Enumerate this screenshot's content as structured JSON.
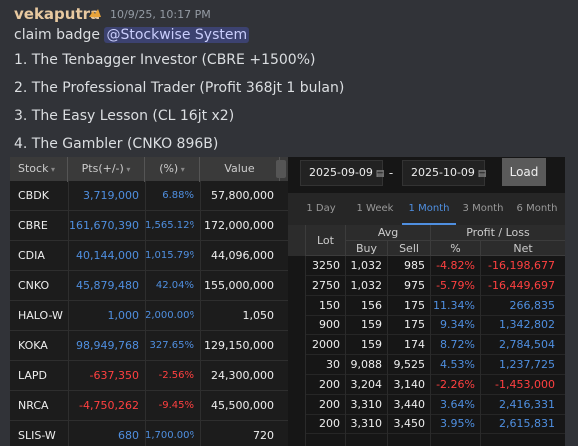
{
  "header": {
    "username": "vekaputra",
    "timestamp": "10/9/25, 10:17 PM"
  },
  "message": {
    "text": "claim badge",
    "mention": "@Stockwise System",
    "items": [
      "1. The Tenbagger Investor (CBRE +1500%)",
      "2. The Professional Trader (Profit 368jt 1 bulan)",
      "3. The Easy Lesson (CL 16jt x2)",
      "4. The Gambler (CNKO 896B)"
    ]
  },
  "holdings_table": {
    "columns": [
      "Stock",
      "Pts(+/-)",
      "(%)",
      "Value"
    ],
    "rows": [
      [
        "CBDK",
        "3,719,000",
        "6.88%",
        "57,800,000"
      ],
      [
        "CBRE",
        "161,670,390",
        "1,565.12%",
        "172,000,000"
      ],
      [
        "CDIA",
        "40,144,000",
        "1,015.79%",
        "44,096,000"
      ],
      [
        "CNKO",
        "45,879,480",
        "42.04%",
        "155,000,000"
      ],
      [
        "HALO-W",
        "1,000",
        "2,000.00%",
        "1,050"
      ],
      [
        "KOKA",
        "98,949,768",
        "327.65%",
        "129,150,000"
      ],
      [
        "LAPD",
        "-637,350",
        "-2.56%",
        "24,300,000"
      ],
      [
        "NRCA",
        "-4,750,262",
        "-9.45%",
        "45,500,000"
      ],
      [
        "SLIS-W",
        "680",
        "1,700.00%",
        "720"
      ]
    ]
  },
  "pnl_panel": {
    "start_date": "2025-09-09",
    "separator": "-",
    "end_date": "2025-10-09",
    "load_button": "Load",
    "tabs": [
      "1 Day",
      "1 Week",
      "1 Month",
      "3 Month",
      "6 Month"
    ],
    "active_tab": 2,
    "columns": {
      "lot": "Lot",
      "avg": "Avg",
      "buy": "Buy",
      "sell": "Sell",
      "pl": "Profit / Loss",
      "pct": "%",
      "net": "Net"
    },
    "rows": [
      [
        "3250",
        "1,032",
        "985",
        "-4.82%",
        "-16,198,677"
      ],
      [
        "2750",
        "1,032",
        "975",
        "-5.79%",
        "-16,449,697"
      ],
      [
        "150",
        "156",
        "175",
        "11.34%",
        "266,835"
      ],
      [
        "900",
        "159",
        "175",
        "9.34%",
        "1,342,802"
      ],
      [
        "2000",
        "159",
        "174",
        "8.72%",
        "2,784,504"
      ],
      [
        "30",
        "9,088",
        "9,525",
        "4.53%",
        "1,237,725"
      ],
      [
        "200",
        "3,204",
        "3,140",
        "-2.26%",
        "-1,453,000"
      ],
      [
        "200",
        "3,310",
        "3,440",
        "3.64%",
        "2,416,331"
      ],
      [
        "200",
        "3,310",
        "3,450",
        "3.95%",
        "2,615,831"
      ]
    ]
  }
}
